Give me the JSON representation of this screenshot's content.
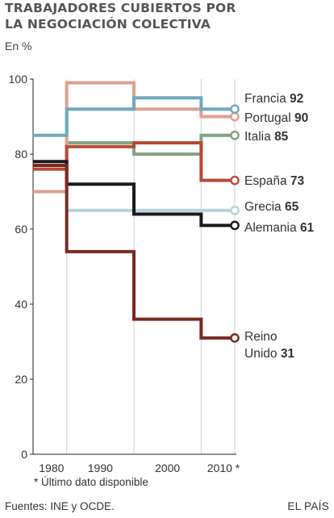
{
  "title_line1": "TRABAJADORES CUBIERTOS POR",
  "title_line2": "LA NEGOCIACIÓN COLECTIVA",
  "subtitle": "En %",
  "footnote": "* Último dato disponible",
  "source": "Fuentes: INE y OCDE.",
  "brand": "EL PAÍS",
  "chart_data": {
    "type": "line",
    "step": true,
    "xlabels": [
      "1980",
      "1990",
      "2000",
      "2010 *"
    ],
    "x_categories": [
      "1980",
      "1985",
      "1990",
      "1995",
      "2000",
      "2005",
      "2010"
    ],
    "ylim": [
      0,
      100
    ],
    "yticks": [
      0,
      20,
      40,
      60,
      80,
      100
    ],
    "grid": "vertical",
    "series": [
      {
        "name": "Francia",
        "label_value": "92",
        "color": "#6fa9be",
        "values": [
          85,
          92,
          95,
          92
        ],
        "x": [
          "1980",
          "1985",
          "1995",
          "2005"
        ],
        "end": "2010"
      },
      {
        "name": "Portugal",
        "label_value": "90",
        "color": "#e0a090",
        "values": [
          70,
          99,
          92,
          90
        ],
        "x": [
          "1980",
          "1985",
          "1995",
          "2005"
        ],
        "end": "2010"
      },
      {
        "name": "Italia",
        "label_value": "85",
        "color": "#7fa482",
        "values": [
          83,
          80,
          85
        ],
        "x": [
          "1985",
          "1995",
          "2005"
        ],
        "end": "2010"
      },
      {
        "name": "España",
        "label_value": "73",
        "color": "#b84a35",
        "values": [
          76,
          82,
          83,
          73
        ],
        "x": [
          "1980",
          "1985",
          "1995",
          "2005"
        ],
        "end": "2010"
      },
      {
        "name": "Grecia",
        "label_value": "65",
        "color": "#b7d2dc",
        "values": [
          65
        ],
        "x": [
          "1985"
        ],
        "end": "2010"
      },
      {
        "name": "Alemania",
        "label_value": "61",
        "color": "#1a1a1a",
        "values": [
          78,
          72,
          64,
          61
        ],
        "x": [
          "1980",
          "1985",
          "1995",
          "2005"
        ],
        "end": "2010"
      },
      {
        "name": "Reino",
        "name_line2": "Unido",
        "label_value": "31",
        "color": "#7a2a20",
        "values": [
          77,
          54,
          36,
          31
        ],
        "x": [
          "1980",
          "1985",
          "1995",
          "2005"
        ],
        "end": "2010"
      }
    ]
  }
}
